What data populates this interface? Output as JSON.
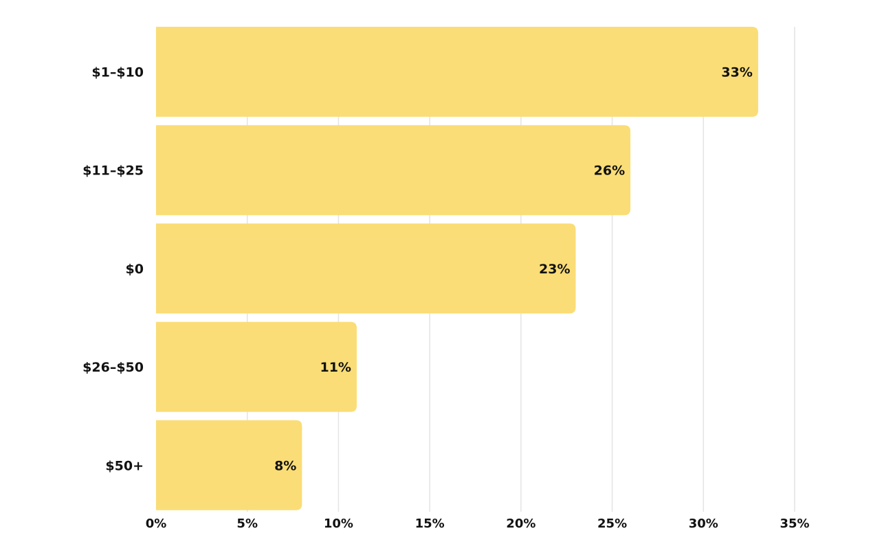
{
  "chart_data": {
    "type": "bar",
    "orientation": "horizontal",
    "categories": [
      "$1–$10",
      "$11–$25",
      "$0",
      "$26–$50",
      "$50+"
    ],
    "values": [
      33,
      26,
      23,
      11,
      8
    ],
    "value_labels": [
      "33%",
      "26%",
      "23%",
      "11%",
      "8%"
    ],
    "xlim": [
      0,
      35
    ],
    "x_ticks": [
      0,
      5,
      10,
      15,
      20,
      25,
      30,
      35
    ],
    "x_tick_labels": [
      "0%",
      "5%",
      "10%",
      "15%",
      "20%",
      "25%",
      "30%",
      "35%"
    ],
    "bar_color": "#fadd76",
    "grid": true,
    "legend": "none"
  }
}
